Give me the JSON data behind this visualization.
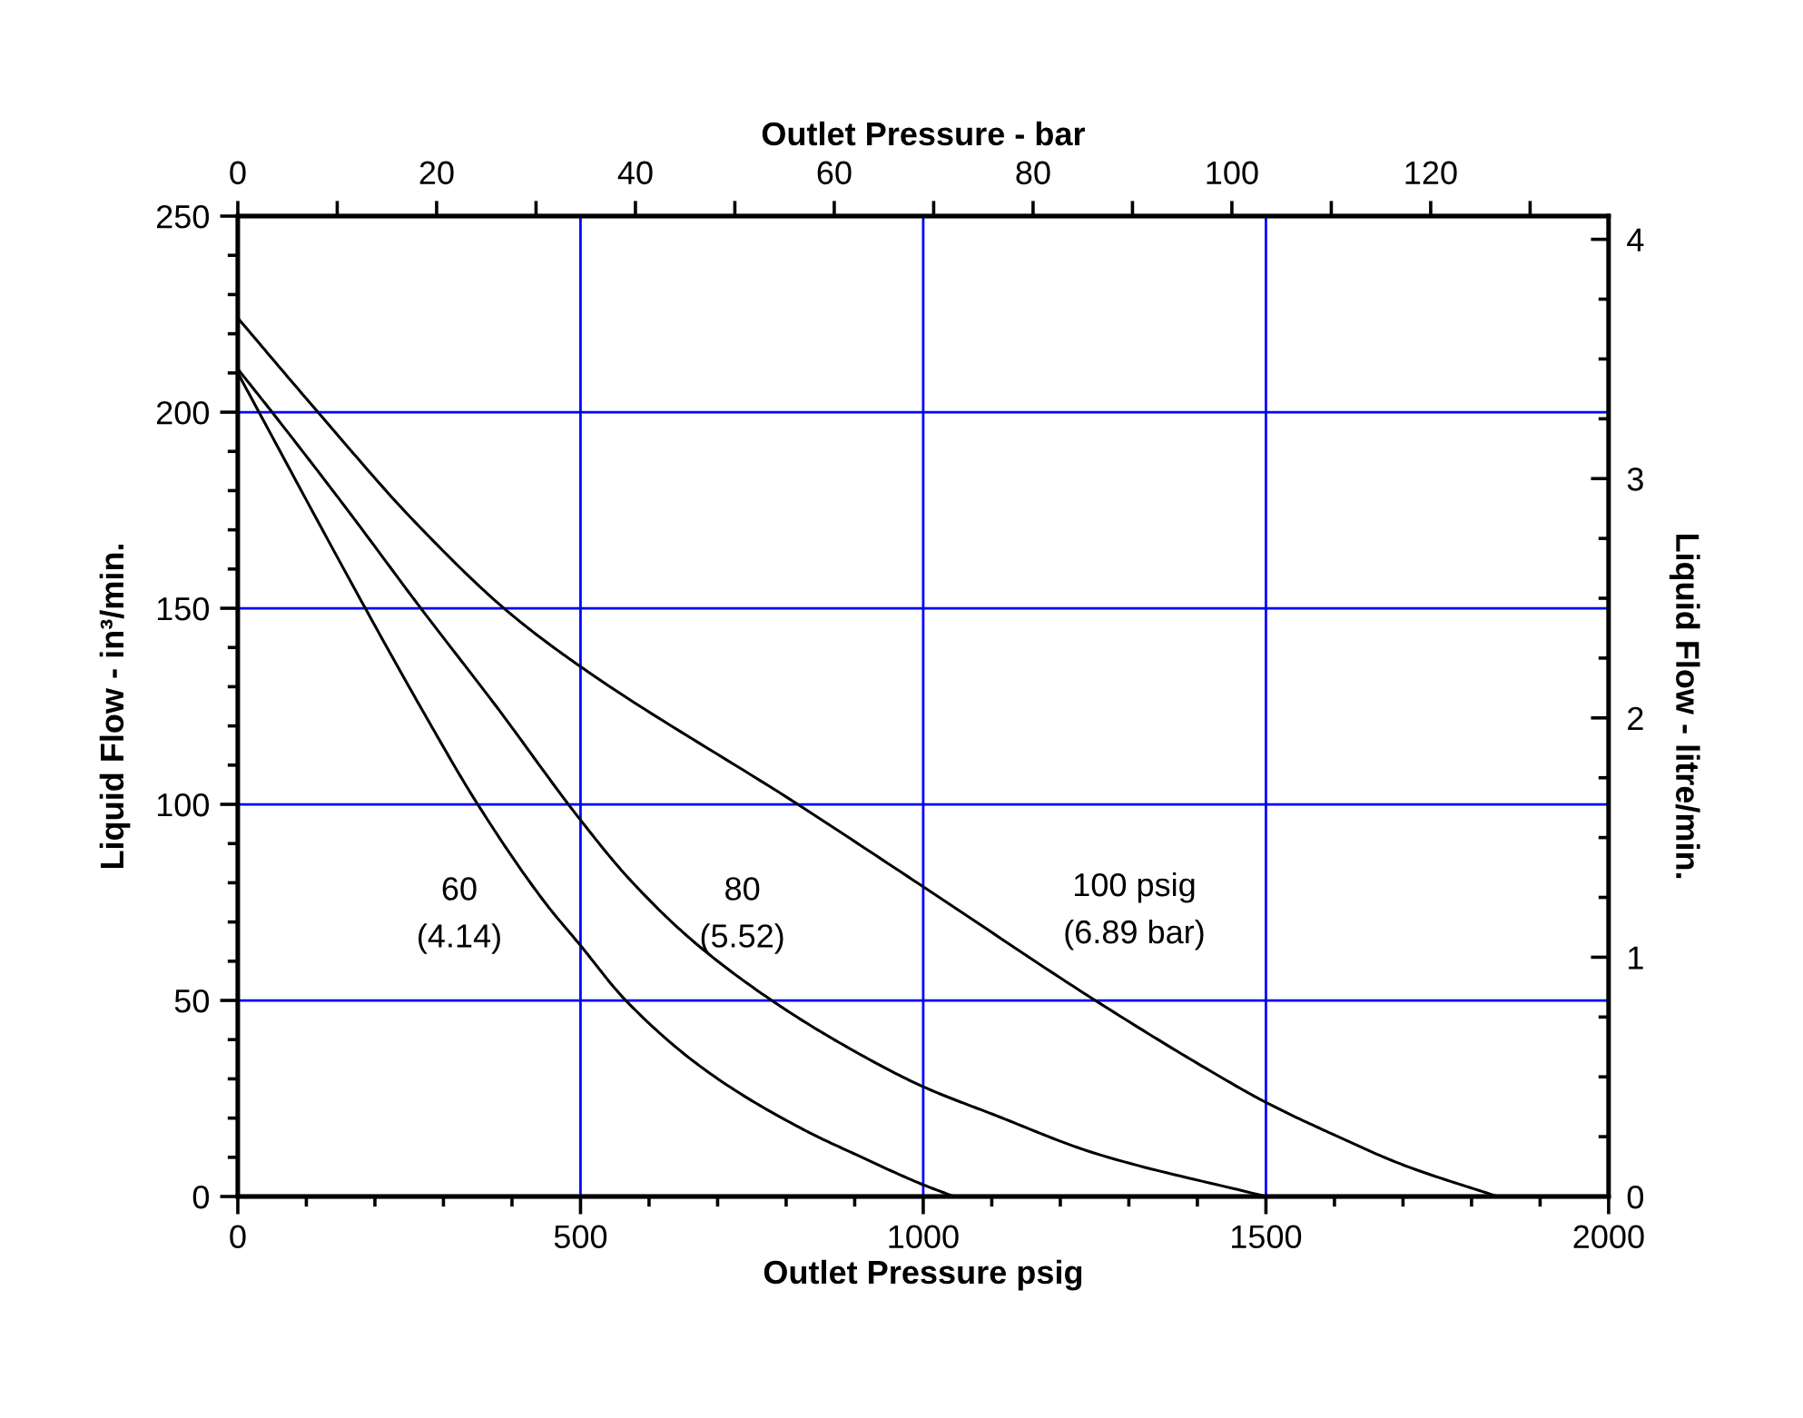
{
  "chart_data": {
    "type": "line",
    "xlabel": "Outlet Pressure psig",
    "ylabel": "Liquid Flow - in³/min.",
    "x2label": "Outlet Pressure - bar",
    "y2label": "Liquid Flow - litre/min.",
    "xlim": [
      0,
      2000
    ],
    "ylim": [
      0,
      250
    ],
    "x2lim": [
      0,
      137.9
    ],
    "y2lim": [
      0,
      4.097
    ],
    "xticks": [
      0,
      {
        "value": 100,
        "label": null
      },
      {
        "value": 200,
        "label": null
      },
      {
        "value": 300,
        "label": null
      },
      {
        "value": 400,
        "label": null
      },
      500,
      {
        "value": 600,
        "label": null
      },
      {
        "value": 700,
        "label": null
      },
      {
        "value": 800,
        "label": null
      },
      {
        "value": 900,
        "label": null
      },
      1000,
      {
        "value": 1100,
        "label": null
      },
      {
        "value": 1200,
        "label": null
      },
      {
        "value": 1300,
        "label": null
      },
      {
        "value": 1400,
        "label": null
      },
      1500,
      {
        "value": 1600,
        "label": null
      },
      {
        "value": 1700,
        "label": null
      },
      {
        "value": 1800,
        "label": null
      },
      {
        "value": 1900,
        "label": null
      },
      2000
    ],
    "yticks": [
      0,
      {
        "value": 10,
        "label": null
      },
      {
        "value": 20,
        "label": null
      },
      {
        "value": 30,
        "label": null
      },
      {
        "value": 40,
        "label": null
      },
      50,
      {
        "value": 60,
        "label": null
      },
      {
        "value": 70,
        "label": null
      },
      {
        "value": 80,
        "label": null
      },
      {
        "value": 90,
        "label": null
      },
      100,
      {
        "value": 110,
        "label": null
      },
      {
        "value": 120,
        "label": null
      },
      {
        "value": 130,
        "label": null
      },
      {
        "value": 140,
        "label": null
      },
      150,
      {
        "value": 160,
        "label": null
      },
      {
        "value": 170,
        "label": null
      },
      {
        "value": 180,
        "label": null
      },
      {
        "value": 190,
        "label": null
      },
      200,
      {
        "value": 210,
        "label": null
      },
      {
        "value": 220,
        "label": null
      },
      {
        "value": 230,
        "label": null
      },
      {
        "value": 240,
        "label": null
      },
      250
    ],
    "x2ticks": [
      0,
      {
        "value": 10,
        "label": null
      },
      20,
      {
        "value": 30,
        "label": null
      },
      40,
      {
        "value": 50,
        "label": null
      },
      60,
      {
        "value": 70,
        "label": null
      },
      80,
      {
        "value": 90,
        "label": null
      },
      100,
      {
        "value": 110,
        "label": null
      },
      120,
      {
        "value": 130,
        "label": null
      }
    ],
    "y2ticks": [
      0,
      {
        "value": 0.25,
        "label": null
      },
      {
        "value": 0.5,
        "label": null
      },
      {
        "value": 0.75,
        "label": null
      },
      1,
      {
        "value": 1.25,
        "label": null
      },
      {
        "value": 1.5,
        "label": null
      },
      {
        "value": 1.75,
        "label": null
      },
      2,
      {
        "value": 2.25,
        "label": null
      },
      {
        "value": 2.5,
        "label": null
      },
      {
        "value": 2.75,
        "label": null
      },
      3,
      {
        "value": 3.25,
        "label": null
      },
      {
        "value": 3.5,
        "label": null
      },
      {
        "value": 3.75,
        "label": null
      },
      4
    ],
    "grid": true,
    "series": [
      {
        "color": "#000000",
        "x": [
          0,
          186,
          266,
          350,
          448,
          500,
          566,
          684,
          826,
          898,
          1000,
          1045
        ],
        "values": [
          210,
          150,
          125,
          100,
          75,
          64,
          50,
          32,
          17,
          11,
          3,
          0
        ]
      },
      {
        "color": "#000000",
        "x": [
          0,
          50,
          156,
          267,
          377,
          500,
          571,
          665,
          779,
          880,
          1000,
          1101,
          1251,
          1500
        ],
        "values": [
          211,
          200,
          176,
          150,
          125,
          96,
          81,
          65,
          50,
          39,
          28,
          21,
          11,
          0
        ]
      },
      {
        "color": "#000000",
        "x": [
          0,
          117,
          253,
          395,
          501,
          817,
          1000,
          1251,
          1419,
          1500,
          1596,
          1701,
          1838
        ],
        "values": [
          224,
          200,
          173,
          149,
          135,
          100,
          79,
          50,
          32,
          24,
          16,
          8,
          0
        ]
      }
    ],
    "annotations": [
      "60\n(4.14)",
      "80\n(5.52)",
      "100 psig\n(6.89 bar)"
    ]
  }
}
